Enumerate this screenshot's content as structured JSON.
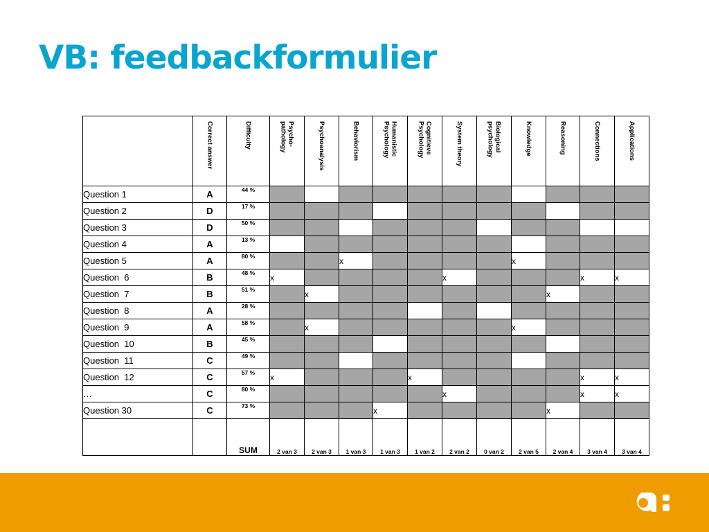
{
  "title": "VB: feedbackformulier",
  "table": {
    "columns": [
      "Correct answer",
      "Difficulty",
      "Psycho-\npathology",
      "Psychoanalysis",
      "Behaviorism",
      "Humanistic\nPsychology",
      "Cognitieve\nPsychology",
      "System theory",
      "Biological\npsychology",
      "Knowledge",
      "Reasoning",
      "Connections",
      "Applications"
    ],
    "rows": [
      {
        "label": "Question 1",
        "answer": "A",
        "difficulty": "44 %",
        "cells": [
          "",
          "",
          "",
          "",
          "",
          "",
          "",
          "",
          "",
          "",
          ""
        ],
        "shaded": [
          1,
          0,
          1,
          1,
          1,
          1,
          1,
          0,
          1,
          1,
          1
        ]
      },
      {
        "label": "Question 2",
        "answer": "D",
        "difficulty": "17 %",
        "cells": [
          "",
          "",
          "",
          "",
          "",
          "",
          "",
          "",
          "",
          "",
          ""
        ],
        "shaded": [
          1,
          1,
          1,
          0,
          1,
          1,
          1,
          1,
          0,
          1,
          1
        ]
      },
      {
        "label": "Question 3",
        "answer": "D",
        "difficulty": "50 %",
        "cells": [
          "",
          "",
          "",
          "",
          "",
          "",
          "",
          "",
          "",
          "",
          ""
        ],
        "shaded": [
          1,
          1,
          0,
          1,
          1,
          1,
          0,
          1,
          1,
          0,
          0
        ]
      },
      {
        "label": "Question 4",
        "answer": "A",
        "difficulty": "13 %",
        "cells": [
          "",
          "",
          "",
          "",
          "",
          "",
          "",
          "",
          "",
          "",
          ""
        ],
        "shaded": [
          0,
          1,
          1,
          1,
          1,
          1,
          1,
          0,
          1,
          1,
          1
        ]
      },
      {
        "label": "Question 5",
        "answer": "A",
        "difficulty": "80 %",
        "cells": [
          "",
          "",
          "x",
          "",
          "",
          "",
          "",
          "x",
          "",
          "",
          ""
        ],
        "shaded": [
          1,
          1,
          0,
          1,
          1,
          1,
          1,
          0,
          1,
          1,
          1
        ]
      },
      {
        "label": "Question  6",
        "answer": "B",
        "difficulty": "48 %",
        "cells": [
          "x",
          "",
          "",
          "",
          "",
          "x",
          "",
          "",
          "",
          "x",
          "x"
        ],
        "shaded": [
          0,
          1,
          1,
          1,
          1,
          0,
          1,
          1,
          1,
          0,
          0
        ]
      },
      {
        "label": "Question  7",
        "answer": "B",
        "difficulty": "51 %",
        "cells": [
          "",
          "x",
          "",
          "",
          "",
          "",
          "",
          "",
          "x",
          "",
          ""
        ],
        "shaded": [
          1,
          0,
          1,
          1,
          1,
          1,
          1,
          1,
          0,
          1,
          1
        ]
      },
      {
        "label": "Question  8",
        "answer": "A",
        "difficulty": "28 %",
        "cells": [
          "",
          "",
          "",
          "",
          "",
          "",
          "",
          "",
          "",
          "",
          ""
        ],
        "shaded": [
          1,
          1,
          1,
          1,
          0,
          1,
          0,
          1,
          1,
          1,
          1
        ]
      },
      {
        "label": "Question  9",
        "answer": "A",
        "difficulty": "58 %",
        "cells": [
          "",
          "x",
          "",
          "",
          "",
          "",
          "",
          "x",
          "",
          "",
          ""
        ],
        "shaded": [
          1,
          0,
          1,
          1,
          1,
          1,
          1,
          0,
          1,
          1,
          1
        ]
      },
      {
        "label": "Question  10",
        "answer": "B",
        "difficulty": "45 %",
        "cells": [
          "",
          "",
          "",
          "",
          "",
          "",
          "",
          "",
          "",
          "",
          ""
        ],
        "shaded": [
          1,
          1,
          1,
          0,
          1,
          1,
          1,
          1,
          0,
          1,
          1
        ]
      },
      {
        "label": "Question  11",
        "answer": "C",
        "difficulty": "49 %",
        "cells": [
          "",
          "",
          "",
          "",
          "",
          "",
          "",
          "",
          "",
          "",
          ""
        ],
        "shaded": [
          1,
          1,
          0,
          1,
          1,
          1,
          1,
          0,
          1,
          1,
          1
        ]
      },
      {
        "label": "Question  12",
        "answer": "C",
        "difficulty": "57 %",
        "cells": [
          "x",
          "",
          "",
          "",
          "x",
          "",
          "",
          "",
          "",
          "x",
          "x"
        ],
        "shaded": [
          0,
          1,
          1,
          1,
          0,
          1,
          1,
          1,
          1,
          0,
          0
        ]
      },
      {
        "label": "…",
        "answer": "C",
        "difficulty": "80 %",
        "cells": [
          "",
          "",
          "",
          "",
          "",
          "x",
          "",
          "",
          "",
          "x",
          "x"
        ],
        "shaded": [
          1,
          1,
          1,
          1,
          1,
          0,
          1,
          1,
          1,
          0,
          0
        ]
      },
      {
        "label": "Question 30",
        "answer": "C",
        "difficulty": "73 %",
        "cells": [
          "",
          "",
          "",
          "x",
          "",
          "",
          "",
          "",
          "x",
          "",
          ""
        ],
        "shaded": [
          1,
          1,
          1,
          0,
          1,
          1,
          1,
          1,
          0,
          1,
          1
        ]
      }
    ],
    "sum_label": "SUM",
    "sums": [
      "2 van 3",
      "2 van 3",
      "1 van 3",
      "1 van 3",
      "1 van 2",
      "2 van 2",
      "0 van 2",
      "2 van 5",
      "2 van 4",
      "3 van 4",
      "3 van 4"
    ]
  },
  "colors": {
    "title": "#0aa5cf",
    "footer": "#ee9c00",
    "shaded_cell": "#a6a6a6"
  },
  "logo_icon": "a-colon-logo-icon"
}
